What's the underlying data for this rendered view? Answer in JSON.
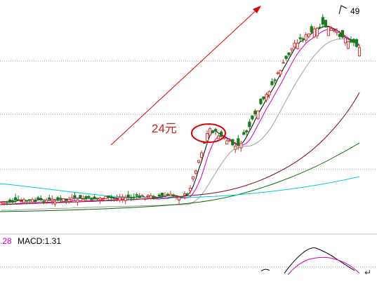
{
  "chart_data": {
    "type": "candlestick",
    "annotation": "24元",
    "peak_label": "49",
    "macd_label": "MACD:1.31",
    "indicator_fragment": ".28",
    "colors": {
      "up": "#d83030",
      "down": "#1a7a1a",
      "ma5": "#000000",
      "ma10": "#cc00cc",
      "ma20": "#a0a0a0",
      "ma60": "#7a0a20",
      "ma120": "#006600",
      "ma250": "#00cccc",
      "arrow": "#e00000",
      "circle": "#e00000",
      "macd_text": "#000000",
      "indicator_text": "#cc00cc"
    }
  }
}
